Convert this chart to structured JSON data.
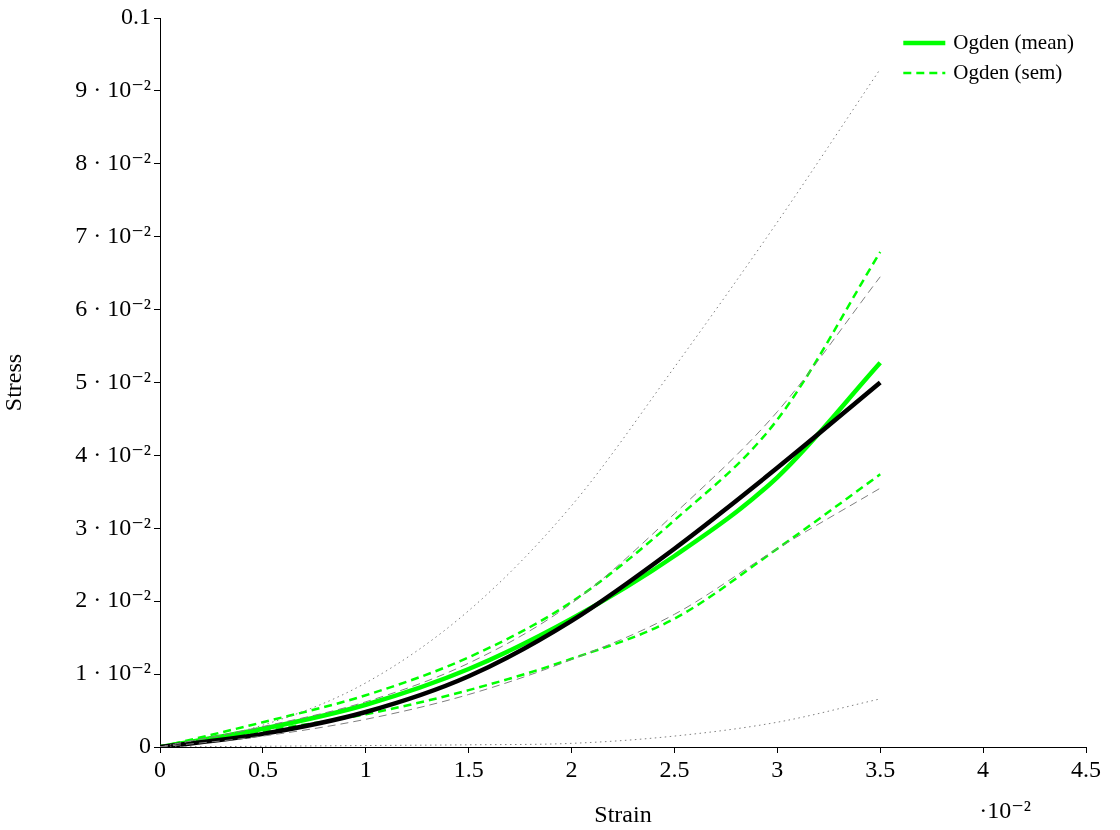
{
  "chart_data": {
    "type": "line",
    "xlabel": "Strain",
    "ylabel": "Stress",
    "x": [
      0,
      0.5,
      1,
      1.5,
      2,
      2.5,
      3,
      3.5
    ],
    "series": [
      {
        "color": "#808080",
        "line_style": "dotted",
        "values": [
          0,
          0.003,
          0.0088,
          0.0187,
          0.0331,
          0.0521,
          0.072,
          0.093
        ]
      },
      {
        "color": "#808080",
        "line_style": "dotted",
        "values": [
          0,
          0.0001,
          0.0002,
          0.0003,
          0.0005,
          0.0015,
          0.0034,
          0.0066
        ]
      },
      {
        "color": "#808080",
        "line_style": "dashed",
        "values": [
          0,
          0.0028,
          0.0062,
          0.0115,
          0.0197,
          0.032,
          0.046,
          0.0645
        ]
      },
      {
        "color": "#808080",
        "line_style": "dashed",
        "values": [
          0,
          0.0015,
          0.0038,
          0.0072,
          0.012,
          0.0182,
          0.0272,
          0.0355
        ]
      },
      {
        "color": "#000000",
        "line_style": "solid",
        "values": [
          0,
          0.0018,
          0.0048,
          0.0097,
          0.0173,
          0.0272,
          0.0383,
          0.05
        ]
      },
      {
        "name": "Ogden (mean)",
        "color": "#00ff00",
        "line_style": "solid",
        "values": [
          0,
          0.0025,
          0.0058,
          0.0107,
          0.0176,
          0.0262,
          0.037,
          0.0527
        ]
      },
      {
        "name": "Ogden (sem)",
        "color": "#00ff00",
        "line_style": "dashed",
        "values": [
          0,
          0.0034,
          0.0071,
          0.0123,
          0.0199,
          0.0311,
          0.0449,
          0.0679
        ]
      },
      {
        "color": "#00ff00",
        "line_style": "dashed",
        "values": [
          0,
          0.0022,
          0.0045,
          0.0078,
          0.0121,
          0.0176,
          0.0272,
          0.0374
        ]
      }
    ],
    "xlim": [
      0,
      4.5
    ],
    "xticks": [
      0,
      0.5,
      1,
      1.5,
      2,
      2.5,
      3,
      3.5,
      4,
      4.5
    ],
    "ylim": [
      0,
      0.1
    ],
    "yticks": [
      0,
      {
        "value": 0.01,
        "label": "1 · 10⁻²"
      },
      {
        "value": 0.02,
        "label": "2 · 10⁻²"
      },
      {
        "value": 0.03,
        "label": "3 · 10⁻²"
      },
      {
        "value": 0.04,
        "label": "4 · 10⁻²"
      },
      {
        "value": 0.05,
        "label": "5 · 10⁻²"
      },
      {
        "value": 0.06,
        "label": "6 · 10⁻²"
      },
      {
        "value": 0.07,
        "label": "7 · 10⁻²"
      },
      {
        "value": 0.08,
        "label": "8 · 10⁻²"
      },
      {
        "value": 0.09,
        "label": "9 · 10⁻²"
      },
      0.1
    ],
    "annotations": [
      "·10⁻²"
    ],
    "grid": false,
    "legend": "top right",
    "marker": "none"
  }
}
